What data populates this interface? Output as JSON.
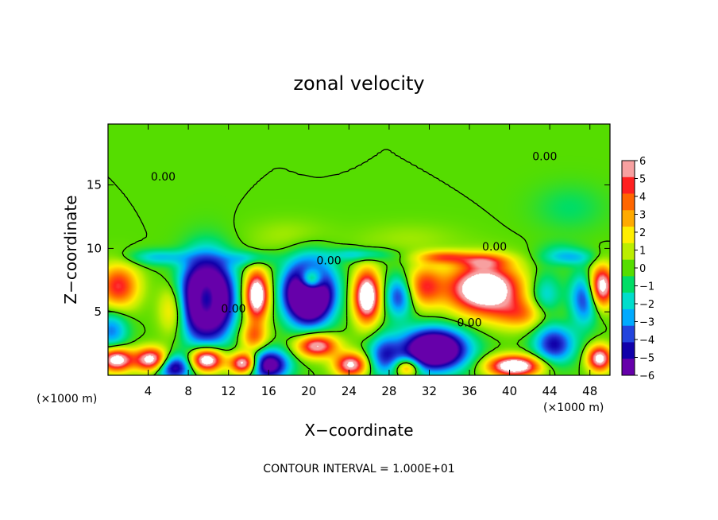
{
  "chart_data": {
    "type": "heatmap",
    "title": "zonal velocity",
    "xlabel": "X−coordinate",
    "ylabel": "Z−coordinate",
    "x_unit_left": "(×1000 m)",
    "x_unit_right": "(×1000 m)",
    "footer": "CONTOUR INTERVAL = 1.000E+01",
    "xlim": [
      0,
      50
    ],
    "ylim": [
      0,
      19.8
    ],
    "x_ticks": [
      4,
      8,
      12,
      16,
      20,
      24,
      28,
      32,
      36,
      40,
      44,
      48
    ],
    "x_tick_labels": [
      "4",
      "8",
      "12",
      "16",
      "20",
      "24",
      "28",
      "32",
      "36",
      "40",
      "44",
      "48"
    ],
    "y_ticks": [
      5,
      10,
      15
    ],
    "y_tick_labels": [
      "5",
      "10",
      "15"
    ],
    "colorbar": {
      "min": -6,
      "max": 6,
      "ticks": [
        6,
        5,
        4,
        3,
        2,
        1,
        0,
        -1,
        -2,
        -3,
        -4,
        -5,
        -6
      ],
      "tick_labels": [
        "6",
        "5",
        "4",
        "3",
        "2",
        "1",
        "0",
        "−1",
        "−2",
        "−3",
        "−4",
        "−5",
        "−6"
      ],
      "colors": [
        "#f7a0a0",
        "#ff2020",
        "#ff6600",
        "#ffaa00",
        "#ffee00",
        "#bbee00",
        "#55dd00",
        "#00dd66",
        "#00ddcc",
        "#00aaff",
        "#2244dd",
        "#1100aa",
        "#6600aa"
      ]
    },
    "contour_labels": [
      {
        "text": "0.00",
        "x": 5.5,
        "y": 15.6
      },
      {
        "text": "0.00",
        "x": 43.5,
        "y": 17.2
      },
      {
        "text": "0.00",
        "x": 38.5,
        "y": 10.1
      },
      {
        "text": "0.00",
        "x": 22.0,
        "y": 9.0
      },
      {
        "text": "0.00",
        "x": 12.5,
        "y": 5.2
      },
      {
        "text": "0.00",
        "x": 36.0,
        "y": 4.1
      }
    ],
    "blobs": [
      {
        "x": 1.0,
        "z": 7.0,
        "v": 5.2,
        "sx": 2.0,
        "sz": 1.7
      },
      {
        "x": 0.3,
        "z": 3.5,
        "v": -3.5,
        "sx": 1.6,
        "sz": 1.5
      },
      {
        "x": 6.5,
        "z": 5.2,
        "v": 3.2,
        "sx": 1.4,
        "sz": 2.0
      },
      {
        "x": 9.8,
        "z": 6.0,
        "v": 9.0,
        "sx": 1.3,
        "sz": 1.8
      },
      {
        "x": 9.8,
        "z": 6.0,
        "v": -14.0,
        "sx": 2.4,
        "sz": 3.0
      },
      {
        "x": 14.8,
        "z": 6.3,
        "v": 9.0,
        "sx": 1.2,
        "sz": 1.9
      },
      {
        "x": 20.2,
        "z": 7.4,
        "v": 9.0,
        "sx": 1.2,
        "sz": 1.0
      },
      {
        "x": 20.0,
        "z": 6.5,
        "v": -13.0,
        "sx": 2.3,
        "sz": 2.3
      },
      {
        "x": 25.8,
        "z": 6.2,
        "v": 9.0,
        "sx": 1.3,
        "sz": 2.0
      },
      {
        "x": 29.0,
        "z": 6.2,
        "v": -4.5,
        "sx": 1.4,
        "sz": 1.6
      },
      {
        "x": 31.5,
        "z": 7.0,
        "v": 4.5,
        "sx": 1.8,
        "sz": 1.6
      },
      {
        "x": 37.5,
        "z": 6.8,
        "v": 9.5,
        "sx": 3.6,
        "sz": 1.9
      },
      {
        "x": 41.5,
        "z": 4.8,
        "v": 3.5,
        "sx": 3.0,
        "sz": 1.2
      },
      {
        "x": 43.5,
        "z": 6.0,
        "v": -3.0,
        "sx": 1.6,
        "sz": 2.0
      },
      {
        "x": 49.2,
        "z": 7.0,
        "v": 8.0,
        "sx": 1.2,
        "sz": 1.6
      },
      {
        "x": 47.5,
        "z": 6.0,
        "v": -4.5,
        "sx": 1.4,
        "sz": 2.0
      },
      {
        "x": 0.8,
        "z": 1.2,
        "v": 8.0,
        "sx": 1.6,
        "sz": 0.9
      },
      {
        "x": 4.3,
        "z": 1.2,
        "v": 8.0,
        "sx": 1.6,
        "sz": 0.9
      },
      {
        "x": 6.5,
        "z": 0.6,
        "v": -6.0,
        "sx": 1.8,
        "sz": 1.0
      },
      {
        "x": 9.8,
        "z": 1.2,
        "v": 9.0,
        "sx": 1.6,
        "sz": 0.9
      },
      {
        "x": 13.5,
        "z": 0.9,
        "v": 8.0,
        "sx": 1.3,
        "sz": 0.8
      },
      {
        "x": 16.0,
        "z": 0.8,
        "v": -7.0,
        "sx": 2.0,
        "sz": 1.2
      },
      {
        "x": 14.5,
        "z": 3.0,
        "v": 4.0,
        "sx": 1.3,
        "sz": 1.2
      },
      {
        "x": 20.8,
        "z": 2.3,
        "v": 7.0,
        "sx": 2.0,
        "sz": 0.9
      },
      {
        "x": 24.2,
        "z": 0.8,
        "v": 7.0,
        "sx": 1.6,
        "sz": 0.9
      },
      {
        "x": 27.5,
        "z": 1.5,
        "v": -4.0,
        "sx": 1.6,
        "sz": 1.6
      },
      {
        "x": 29.8,
        "z": 0.6,
        "v": 5.0,
        "sx": 1.2,
        "sz": 0.7
      },
      {
        "x": 32.5,
        "z": 2.0,
        "v": -10.0,
        "sx": 3.2,
        "sz": 1.6
      },
      {
        "x": 40.5,
        "z": 0.7,
        "v": 9.0,
        "sx": 2.6,
        "sz": 0.8
      },
      {
        "x": 44.5,
        "z": 2.4,
        "v": -5.0,
        "sx": 2.0,
        "sz": 1.5
      },
      {
        "x": 49.0,
        "z": 1.3,
        "v": 7.5,
        "sx": 1.2,
        "sz": 1.0
      },
      {
        "x": 33.5,
        "z": 9.3,
        "v": 4.0,
        "sx": 2.5,
        "sz": 0.5
      },
      {
        "x": 37.5,
        "z": 9.0,
        "v": 3.5,
        "sx": 2.5,
        "sz": 0.6
      },
      {
        "x": 25.0,
        "z": 9.5,
        "v": -2.5,
        "sx": 3.0,
        "sz": 0.5
      },
      {
        "x": 5.0,
        "z": 9.3,
        "v": -2.5,
        "sx": 3.0,
        "sz": 0.6
      },
      {
        "x": 14.0,
        "z": 9.2,
        "v": -2.3,
        "sx": 2.5,
        "sz": 0.6
      },
      {
        "x": 46.0,
        "z": 9.3,
        "v": -2.5,
        "sx": 2.5,
        "sz": 0.6
      },
      {
        "x": 18.0,
        "z": 11.0,
        "v": 0.8,
        "sx": 4.0,
        "sz": 1.3
      },
      {
        "x": 30.0,
        "z": 10.8,
        "v": 0.7,
        "sx": 5.0,
        "sz": 1.2
      },
      {
        "x": 46.0,
        "z": 13.2,
        "v": -1.0,
        "sx": 3.5,
        "sz": 1.8
      },
      {
        "x": 45.0,
        "z": 10.0,
        "v": -0.8,
        "sx": 2.0,
        "sz": 0.7
      }
    ]
  }
}
